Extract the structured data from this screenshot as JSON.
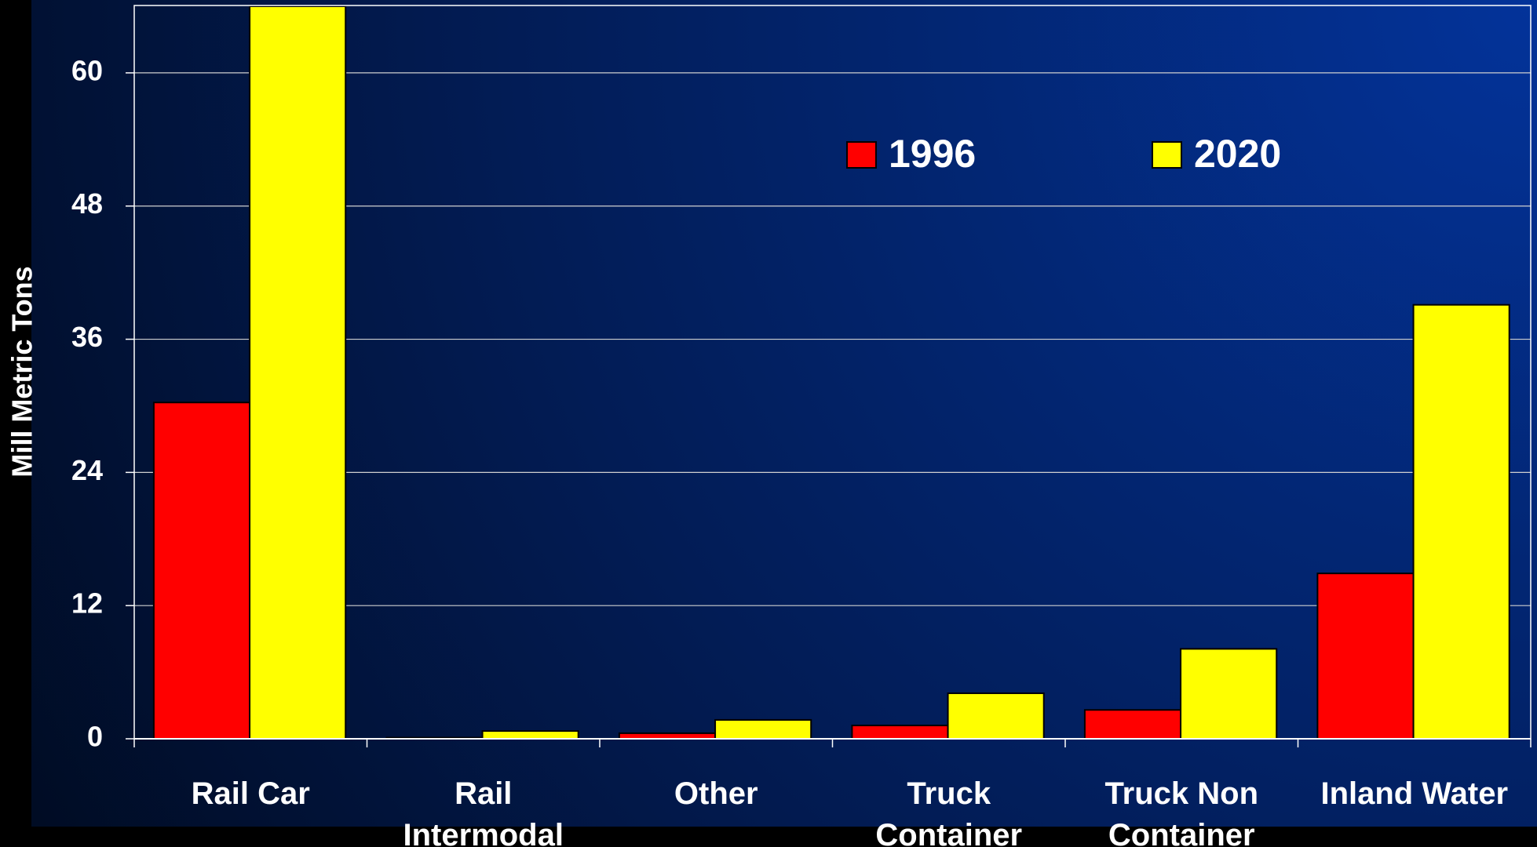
{
  "chart_data": {
    "type": "bar",
    "y_label": "Mill Metric Tons",
    "categories": [
      "Rail Car",
      "Rail Intermodal",
      "Other",
      "Truck Container",
      "Truck Non Container",
      "Inland Water"
    ],
    "series": [
      {
        "name": "1996",
        "color": "#ff0000",
        "values": [
          30.3,
          0.1,
          0.5,
          1.2,
          2.6,
          14.9
        ]
      },
      {
        "name": "2020",
        "color": "#ffff00",
        "values": [
          66,
          0.7,
          1.7,
          4.1,
          8.1,
          39.1
        ]
      }
    ],
    "ylim": [
      0,
      66
    ],
    "yticks": [
      0,
      12,
      24,
      36,
      48,
      60
    ],
    "grid": true
  }
}
